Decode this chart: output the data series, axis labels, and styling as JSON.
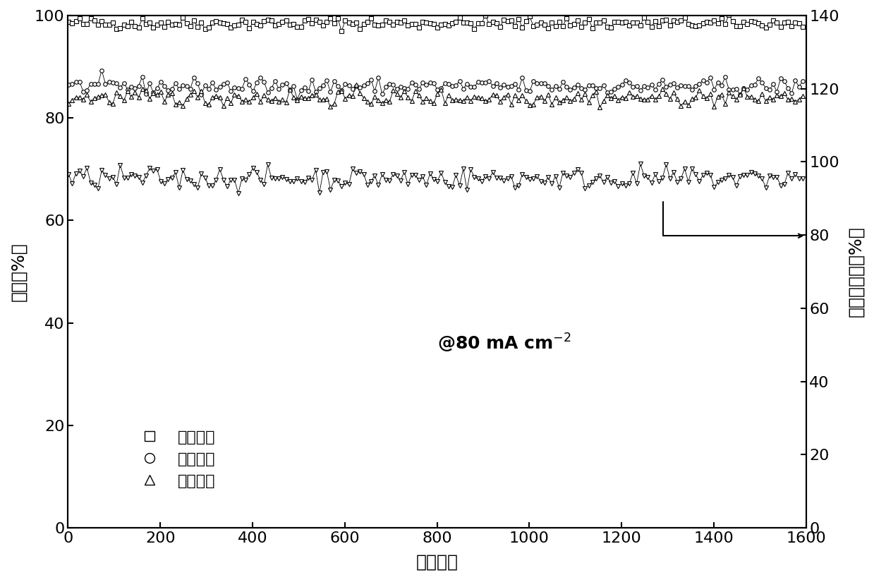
{
  "x_min": 0,
  "x_max": 1600,
  "x_ticks": [
    0,
    200,
    400,
    600,
    800,
    1000,
    1200,
    1400,
    1600
  ],
  "y_left_min": 0,
  "y_left_max": 100,
  "y_left_ticks": [
    0,
    20,
    40,
    60,
    80,
    100
  ],
  "y_right_min": 0,
  "y_right_max": 140,
  "y_right_ticks": [
    0,
    20,
    40,
    60,
    80,
    100,
    120,
    140
  ],
  "coulombic_efficiency_mean": 98.5,
  "coulombic_efficiency_std": 0.6,
  "voltage_efficiency_mean": 86.2,
  "voltage_efficiency_std": 0.8,
  "energy_efficiency_mean": 85.0,
  "energy_efficiency_std": 0.8,
  "capacity_retention_mean": 95.5,
  "capacity_retention_std": 1.5,
  "n_cycles": 1600,
  "xlabel": "循环序数",
  "ylabel_left": "效率（%）",
  "ylabel_right": "容量保持率（%）",
  "legend_coulombic": "库伦效率",
  "legend_voltage": "电压效率",
  "legend_energy": "能量效率",
  "color": "#000000",
  "background": "#ffffff"
}
